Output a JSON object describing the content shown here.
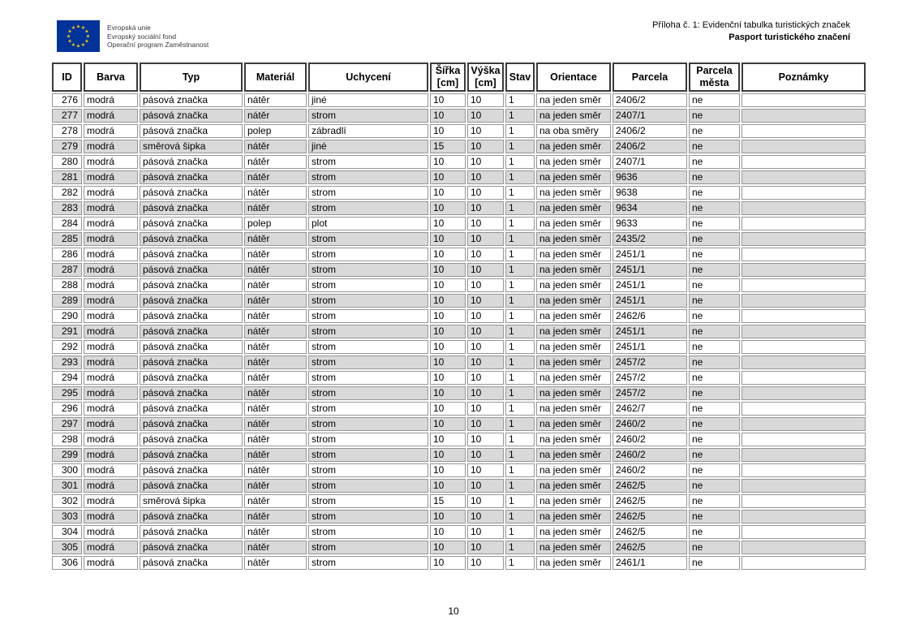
{
  "document": {
    "eu_logo": {
      "line1": "Evropská unie",
      "line2": "Evropský sociální fond",
      "line3": "Operační program Zaměstnanost"
    },
    "header_right": {
      "line1": "Příloha č. 1: Evidenční tabulka turistických značek",
      "line2": "Pasport turistického značení"
    },
    "footer": {
      "page_number": "10"
    }
  },
  "table": {
    "columns": [
      {
        "key": "id",
        "label": "ID"
      },
      {
        "key": "barva",
        "label": "Barva"
      },
      {
        "key": "typ",
        "label": "Typ"
      },
      {
        "key": "material",
        "label": "Materiál"
      },
      {
        "key": "uchyceni",
        "label": "Uchycení"
      },
      {
        "key": "sirka",
        "label": "Šířka\n[cm]"
      },
      {
        "key": "vyska",
        "label": "Výška\n[cm]"
      },
      {
        "key": "stav",
        "label": "Stav"
      },
      {
        "key": "orientace",
        "label": "Orientace"
      },
      {
        "key": "parcela",
        "label": "Parcela"
      },
      {
        "key": "parcela_mesta",
        "label": "Parcela\nměsta"
      },
      {
        "key": "poznamky",
        "label": "Poznámky"
      }
    ],
    "rows": [
      [
        "276",
        "modrá",
        "pásová značka",
        "nátěr",
        "jiné",
        "10",
        "10",
        "1",
        "na jeden směr",
        "2406/2",
        "ne",
        ""
      ],
      [
        "277",
        "modrá",
        "pásová značka",
        "nátěr",
        "strom",
        "10",
        "10",
        "1",
        "na jeden směr",
        "2407/1",
        "ne",
        ""
      ],
      [
        "278",
        "modrá",
        "pásová značka",
        "polep",
        "zábradlí",
        "10",
        "10",
        "1",
        "na oba směry",
        "2406/2",
        "ne",
        ""
      ],
      [
        "279",
        "modrá",
        "směrová šipka",
        "nátěr",
        "jiné",
        "15",
        "10",
        "1",
        "na jeden směr",
        "2406/2",
        "ne",
        ""
      ],
      [
        "280",
        "modrá",
        "pásová značka",
        "nátěr",
        "strom",
        "10",
        "10",
        "1",
        "na jeden směr",
        "2407/1",
        "ne",
        ""
      ],
      [
        "281",
        "modrá",
        "pásová značka",
        "nátěr",
        "strom",
        "10",
        "10",
        "1",
        "na jeden směr",
        "9636",
        "ne",
        ""
      ],
      [
        "282",
        "modrá",
        "pásová značka",
        "nátěr",
        "strom",
        "10",
        "10",
        "1",
        "na jeden směr",
        "9638",
        "ne",
        ""
      ],
      [
        "283",
        "modrá",
        "pásová značka",
        "nátěr",
        "strom",
        "10",
        "10",
        "1",
        "na jeden směr",
        "9634",
        "ne",
        ""
      ],
      [
        "284",
        "modrá",
        "pásová značka",
        "polep",
        "plot",
        "10",
        "10",
        "1",
        "na jeden směr",
        "9633",
        "ne",
        ""
      ],
      [
        "285",
        "modrá",
        "pásová značka",
        "nátěr",
        "strom",
        "10",
        "10",
        "1",
        "na jeden směr",
        "2435/2",
        "ne",
        ""
      ],
      [
        "286",
        "modrá",
        "pásová značka",
        "nátěr",
        "strom",
        "10",
        "10",
        "1",
        "na jeden směr",
        "2451/1",
        "ne",
        ""
      ],
      [
        "287",
        "modrá",
        "pásová značka",
        "nátěr",
        "strom",
        "10",
        "10",
        "1",
        "na jeden směr",
        "2451/1",
        "ne",
        ""
      ],
      [
        "288",
        "modrá",
        "pásová značka",
        "nátěr",
        "strom",
        "10",
        "10",
        "1",
        "na jeden směr",
        "2451/1",
        "ne",
        ""
      ],
      [
        "289",
        "modrá",
        "pásová značka",
        "nátěr",
        "strom",
        "10",
        "10",
        "1",
        "na jeden směr",
        "2451/1",
        "ne",
        ""
      ],
      [
        "290",
        "modrá",
        "pásová značka",
        "nátěr",
        "strom",
        "10",
        "10",
        "1",
        "na jeden směr",
        "2462/6",
        "ne",
        ""
      ],
      [
        "291",
        "modrá",
        "pásová značka",
        "nátěr",
        "strom",
        "10",
        "10",
        "1",
        "na jeden směr",
        "2451/1",
        "ne",
        ""
      ],
      [
        "292",
        "modrá",
        "pásová značka",
        "nátěr",
        "strom",
        "10",
        "10",
        "1",
        "na jeden směr",
        "2451/1",
        "ne",
        ""
      ],
      [
        "293",
        "modrá",
        "pásová značka",
        "nátěr",
        "strom",
        "10",
        "10",
        "1",
        "na jeden směr",
        "2457/2",
        "ne",
        ""
      ],
      [
        "294",
        "modrá",
        "pásová značka",
        "nátěr",
        "strom",
        "10",
        "10",
        "1",
        "na jeden směr",
        "2457/2",
        "ne",
        ""
      ],
      [
        "295",
        "modrá",
        "pásová značka",
        "nátěr",
        "strom",
        "10",
        "10",
        "1",
        "na jeden směr",
        "2457/2",
        "ne",
        ""
      ],
      [
        "296",
        "modrá",
        "pásová značka",
        "nátěr",
        "strom",
        "10",
        "10",
        "1",
        "na jeden směr",
        "2462/7",
        "ne",
        ""
      ],
      [
        "297",
        "modrá",
        "pásová značka",
        "nátěr",
        "strom",
        "10",
        "10",
        "1",
        "na jeden směr",
        "2460/2",
        "ne",
        ""
      ],
      [
        "298",
        "modrá",
        "pásová značka",
        "nátěr",
        "strom",
        "10",
        "10",
        "1",
        "na jeden směr",
        "2460/2",
        "ne",
        ""
      ],
      [
        "299",
        "modrá",
        "pásová značka",
        "nátěr",
        "strom",
        "10",
        "10",
        "1",
        "na jeden směr",
        "2460/2",
        "ne",
        ""
      ],
      [
        "300",
        "modrá",
        "pásová značka",
        "nátěr",
        "strom",
        "10",
        "10",
        "1",
        "na jeden směr",
        "2460/2",
        "ne",
        ""
      ],
      [
        "301",
        "modrá",
        "pásová značka",
        "nátěr",
        "strom",
        "10",
        "10",
        "1",
        "na jeden směr",
        "2462/5",
        "ne",
        ""
      ],
      [
        "302",
        "modrá",
        "směrová šipka",
        "nátěr",
        "strom",
        "15",
        "10",
        "1",
        "na jeden směr",
        "2462/5",
        "ne",
        ""
      ],
      [
        "303",
        "modrá",
        "pásová značka",
        "nátěr",
        "strom",
        "10",
        "10",
        "1",
        "na jeden směr",
        "2462/5",
        "ne",
        ""
      ],
      [
        "304",
        "modrá",
        "pásová značka",
        "nátěr",
        "strom",
        "10",
        "10",
        "1",
        "na jeden směr",
        "2462/5",
        "ne",
        ""
      ],
      [
        "305",
        "modrá",
        "pásová značka",
        "nátěr",
        "strom",
        "10",
        "10",
        "1",
        "na jeden směr",
        "2462/5",
        "ne",
        ""
      ],
      [
        "306",
        "modrá",
        "pásová značka",
        "nátěr",
        "strom",
        "10",
        "10",
        "1",
        "na jeden směr",
        "2461/1",
        "ne",
        ""
      ]
    ],
    "shading": "odd-index-rows-gray"
  },
  "colors": {
    "row_shaded": "#d9d9d9",
    "cell_border": "#969696",
    "header_border": "#3b3b3b",
    "eu_flag_blue": "#003399",
    "eu_star_yellow": "#ffcc00"
  }
}
